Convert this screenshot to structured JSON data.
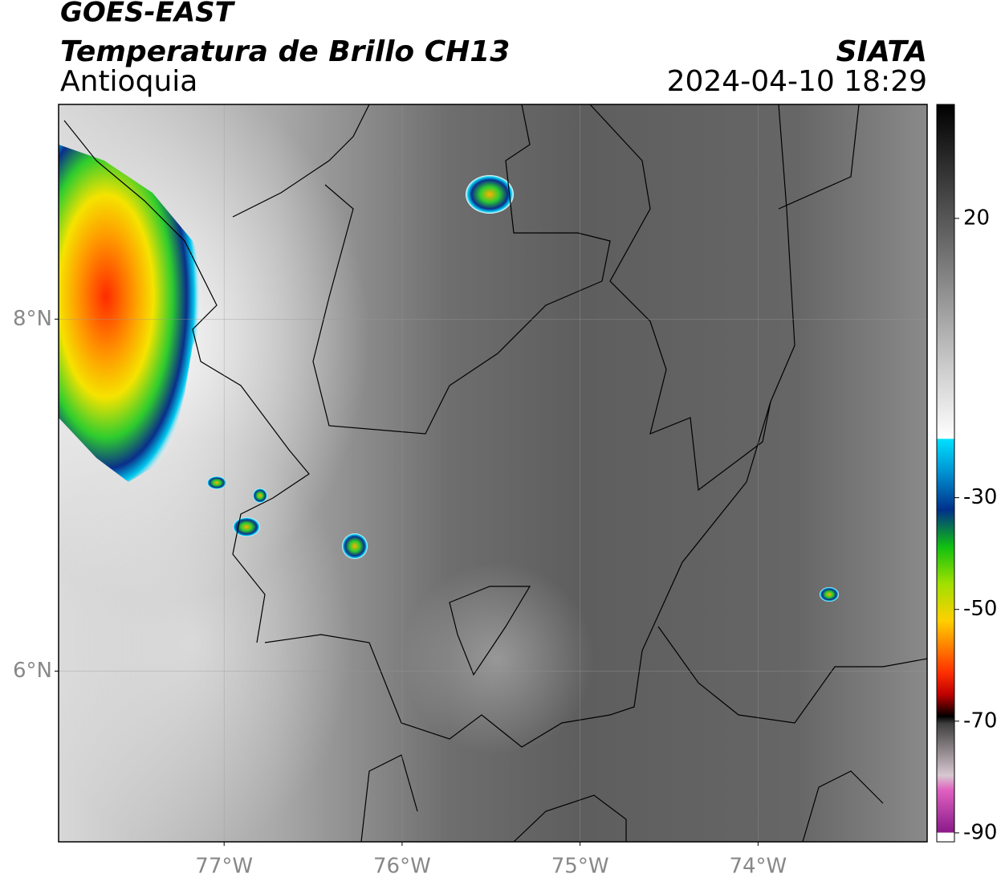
{
  "header": {
    "title": "GOES-EAST",
    "subtitle": "Temperatura de Brillo CH13",
    "region": "Antioquia",
    "source": "SIATA",
    "timestamp": "2024-04-10 18:29"
  },
  "map": {
    "xlim": [
      -77.93,
      -73.05
    ],
    "ylim": [
      5.03,
      9.22
    ],
    "xticks": [
      {
        "value": -77,
        "label": "77°W"
      },
      {
        "value": -76,
        "label": "76°W"
      },
      {
        "value": -75,
        "label": "75°W"
      },
      {
        "value": -74,
        "label": "74°W"
      }
    ],
    "yticks": [
      {
        "value": 8,
        "label": "8°N"
      },
      {
        "value": 6,
        "label": "6°N"
      }
    ],
    "grid": true
  },
  "colorbar": {
    "lim": [
      -91.6,
      40.4
    ],
    "ticks": [
      20,
      -30,
      -50,
      -70,
      -90
    ]
  }
}
